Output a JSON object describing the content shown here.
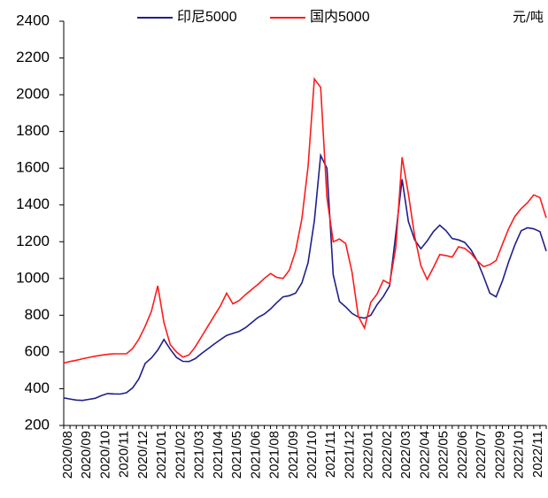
{
  "chart_data": {
    "type": "line",
    "unit": "元/吨",
    "categories": [
      "2020/08",
      null,
      null,
      "2020/09",
      null,
      null,
      "2020/10",
      null,
      null,
      "2020/11",
      null,
      null,
      "2020/12",
      null,
      null,
      "2021/01",
      null,
      null,
      "2021/02",
      null,
      null,
      "2021/03",
      null,
      null,
      "2021/04",
      null,
      null,
      "2021/05",
      null,
      null,
      "2021/06",
      null,
      null,
      "2021/08",
      null,
      null,
      "2021/09",
      null,
      null,
      "2021/10",
      null,
      null,
      "2021/11",
      null,
      null,
      "2021/12",
      null,
      null,
      "2022/01",
      null,
      null,
      "2022/02",
      null,
      null,
      "2022/03",
      null,
      null,
      "2022/04",
      null,
      null,
      "2022/05",
      null,
      null,
      "2022/06",
      null,
      null,
      "2022/07",
      null,
      null,
      "2022/09",
      null,
      null,
      "2022/10",
      null,
      null,
      "2022/11",
      null,
      null
    ],
    "series": [
      {
        "name": "印尼5000",
        "color": "#1f1f8c",
        "values": [
          350,
          344,
          338,
          336,
          342,
          348,
          362,
          374,
          372,
          371,
          378,
          405,
          454,
          538,
          568,
          610,
          668,
          615,
          570,
          549,
          548,
          564,
          592,
          617,
          643,
          667,
          690,
          701,
          712,
          732,
          760,
          788,
          806,
          834,
          868,
          900,
          906,
          920,
          976,
          1086,
          1314,
          1670,
          1600,
          1020,
          875,
          845,
          810,
          790,
          784,
          800,
          857,
          902,
          960,
          1243,
          1540,
          1310,
          1210,
          1162,
          1204,
          1255,
          1290,
          1260,
          1217,
          1210,
          1196,
          1155,
          1095,
          1011,
          920,
          900,
          986,
          1090,
          1183,
          1260,
          1276,
          1270,
          1255,
          1150
        ]
      },
      {
        "name": "国内5000",
        "color": "#ff1a1a",
        "values": [
          540,
          548,
          555,
          563,
          570,
          577,
          582,
          587,
          590,
          590,
          590,
          620,
          670,
          740,
          822,
          960,
          760,
          640,
          600,
          572,
          584,
          628,
          684,
          740,
          796,
          850,
          920,
          862,
          880,
          912,
          940,
          968,
          1000,
          1027,
          1006,
          1000,
          1045,
          1150,
          1325,
          1610,
          2086,
          2040,
          1440,
          1200,
          1215,
          1190,
          1035,
          795,
          730,
          870,
          915,
          990,
          971,
          1170,
          1660,
          1460,
          1230,
          1070,
          995,
          1060,
          1130,
          1125,
          1116,
          1172,
          1164,
          1136,
          1096,
          1064,
          1075,
          1098,
          1186,
          1270,
          1338,
          1380,
          1412,
          1455,
          1440,
          1330
        ]
      }
    ],
    "ylim": [
      200,
      2400
    ],
    "yticks": [
      200,
      400,
      600,
      800,
      1000,
      1200,
      1400,
      1600,
      1800,
      2000,
      2200,
      2400
    ]
  }
}
